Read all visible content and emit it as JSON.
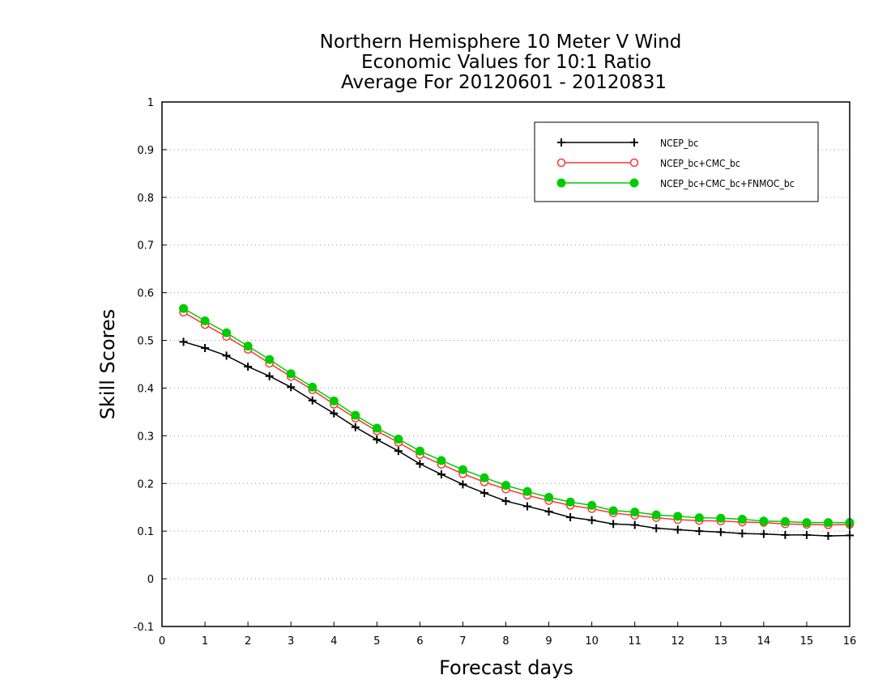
{
  "chart_data": {
    "type": "line",
    "title": [
      "Northern Hemisphere 10 Meter V Wind",
      "Economic Values for 10:1 Ratio",
      "Average For 20120601 - 20120831"
    ],
    "xlabel": "Forecast days",
    "ylabel": "Skill Scores",
    "xlim": [
      0,
      16
    ],
    "ylim": [
      -0.1,
      1
    ],
    "xticks": [
      "0",
      "1",
      "2",
      "3",
      "4",
      "5",
      "6",
      "7",
      "8",
      "9",
      "10",
      "11",
      "12",
      "13",
      "14",
      "15",
      "16"
    ],
    "yticks": [
      "-0.1",
      "0",
      "0.1",
      "0.2",
      "0.3",
      "0.4",
      "0.5",
      "0.6",
      "0.7",
      "0.8",
      "0.9",
      "1"
    ],
    "grid": "horizontal dotted",
    "legend_position": "top-right",
    "x": [
      0.5,
      1,
      1.5,
      2,
      2.5,
      3,
      3.5,
      4,
      4.5,
      5,
      5.5,
      6,
      6.5,
      7,
      7.5,
      8,
      8.5,
      9,
      9.5,
      10,
      10.5,
      11,
      11.5,
      12,
      12.5,
      13,
      13.5,
      14,
      14.5,
      15,
      15.5,
      16
    ],
    "series": [
      {
        "name": "NCEP_bc",
        "color": "#000000",
        "marker": "plus",
        "values": [
          0.497,
          0.484,
          0.468,
          0.445,
          0.425,
          0.402,
          0.374,
          0.347,
          0.318,
          0.292,
          0.268,
          0.241,
          0.219,
          0.198,
          0.18,
          0.163,
          0.152,
          0.141,
          0.129,
          0.123,
          0.115,
          0.113,
          0.106,
          0.103,
          0.1,
          0.098,
          0.095,
          0.094,
          0.092,
          0.092,
          0.09,
          0.091
        ]
      },
      {
        "name": "NCEP_bc+CMC_bc",
        "color": "#ff3333",
        "marker": "open-circle",
        "values": [
          0.559,
          0.533,
          0.508,
          0.481,
          0.452,
          0.424,
          0.396,
          0.366,
          0.337,
          0.31,
          0.286,
          0.26,
          0.24,
          0.22,
          0.203,
          0.188,
          0.175,
          0.164,
          0.154,
          0.147,
          0.138,
          0.133,
          0.128,
          0.124,
          0.122,
          0.121,
          0.119,
          0.118,
          0.115,
          0.114,
          0.113,
          0.114
        ]
      },
      {
        "name": "NCEP_bc+CMC_bc+FNMOC_bc",
        "color": "#00cc00",
        "marker": "filled-circle",
        "values": [
          0.567,
          0.541,
          0.516,
          0.488,
          0.46,
          0.43,
          0.402,
          0.373,
          0.343,
          0.316,
          0.293,
          0.268,
          0.248,
          0.229,
          0.212,
          0.196,
          0.183,
          0.171,
          0.161,
          0.154,
          0.143,
          0.14,
          0.134,
          0.131,
          0.128,
          0.127,
          0.125,
          0.121,
          0.12,
          0.118,
          0.118,
          0.118
        ]
      }
    ]
  }
}
